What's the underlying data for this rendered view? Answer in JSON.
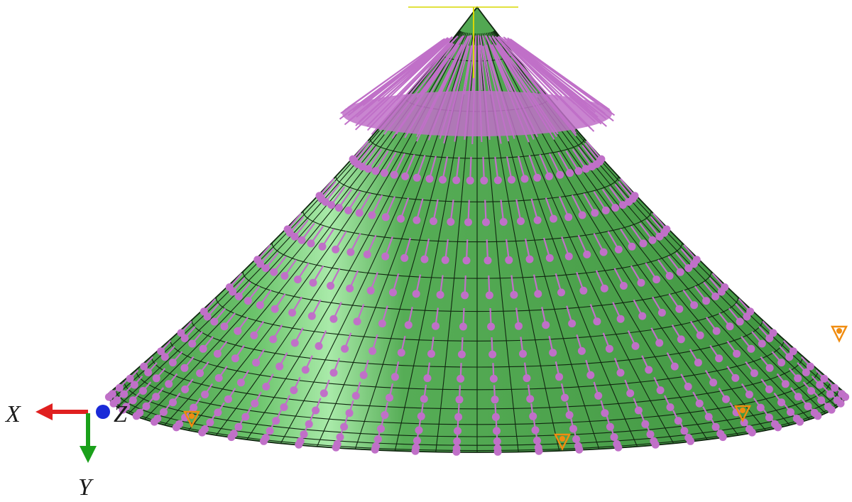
{
  "axes": {
    "x_label": "X",
    "y_label": "Y",
    "z_label": "Z",
    "x_color": "#e02020",
    "y_color": "#1aa01a",
    "z_color": "#1a2ad8"
  },
  "colors": {
    "dome_fill": "#4ea64e",
    "dome_highlight": "#9fe29f",
    "mesh_line": "#102610",
    "load_arrow": "#c070c8",
    "boundary_condition": "#f08c10",
    "reference_point": "#d8d800"
  },
  "icons": {
    "load": "pink-pressure-arrow-icon",
    "support": "orange-boundary-cone-icon",
    "triad": "coordinate-triad-icon"
  }
}
